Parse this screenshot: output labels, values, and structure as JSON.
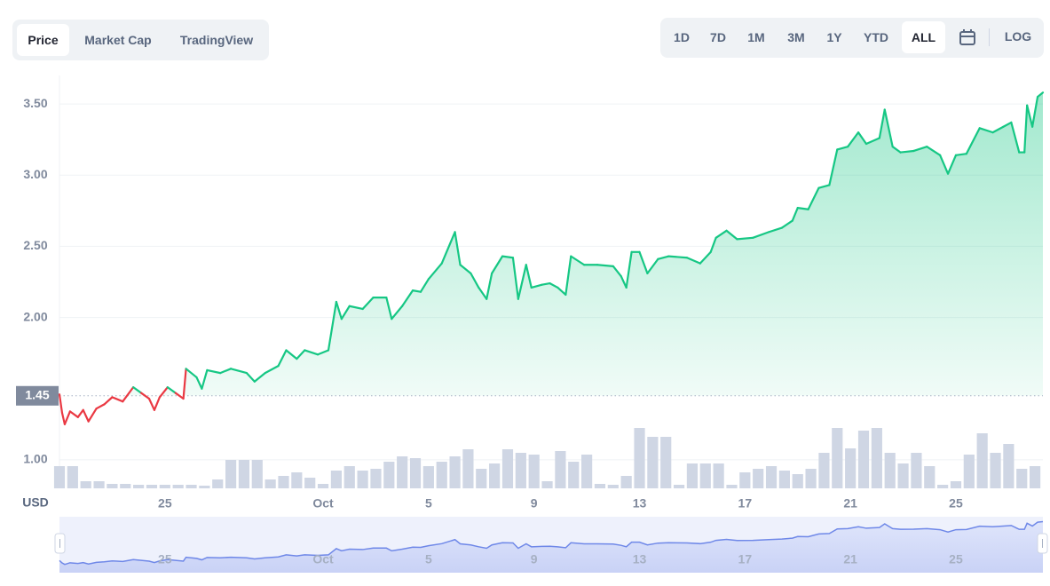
{
  "chart_data": {
    "type": "line",
    "tabs": [
      "Price",
      "Market Cap",
      "TradingView"
    ],
    "ranges": [
      "1D",
      "7D",
      "1M",
      "3M",
      "1Y",
      "YTD",
      "ALL"
    ],
    "scale_button": "LOG",
    "y_axis_label": "USD",
    "baseline": 1.45,
    "up_color": "#16c784",
    "down_color": "#ea3943",
    "volume_color": "#cfd6e4",
    "navigator_color": "#6f88e8",
    "grid": true,
    "xlim": [
      21,
      58.3
    ],
    "xticks": [
      {
        "value": 25,
        "label": "25"
      },
      {
        "value": 31,
        "label": "Oct"
      },
      {
        "value": 35,
        "label": "5"
      },
      {
        "value": 39,
        "label": "9"
      },
      {
        "value": 43,
        "label": "13"
      },
      {
        "value": 47,
        "label": "17"
      },
      {
        "value": 51,
        "label": "21"
      },
      {
        "value": 55,
        "label": "25"
      }
    ],
    "ylim": [
      0.8,
      3.7
    ],
    "yticks": [
      {
        "value": 1,
        "label": "1.00"
      },
      {
        "value": 2,
        "label": "2.00"
      },
      {
        "value": 2.5,
        "label": "2.50"
      },
      {
        "value": 3,
        "label": "3.00"
      },
      {
        "value": 3.5,
        "label": "3.50"
      }
    ],
    "y2lim": [
      0,
      100
    ],
    "series": [
      {
        "name": "Price",
        "x": [
          21.0,
          21.1,
          21.2,
          21.4,
          21.7,
          21.9,
          22.1,
          22.4,
          22.7,
          23.0,
          23.4,
          23.8,
          24.1,
          24.4,
          24.6,
          24.8,
          25.1,
          25.4,
          25.7,
          25.8,
          26.2,
          26.4,
          26.6,
          27.1,
          27.5,
          28.1,
          28.4,
          28.8,
          29.3,
          29.6,
          30.0,
          30.3,
          30.8,
          31.2,
          31.5,
          31.7,
          32.0,
          32.5,
          32.9,
          33.4,
          33.6,
          34.0,
          34.4,
          34.7,
          35.0,
          35.5,
          36.0,
          36.2,
          36.6,
          36.9,
          37.2,
          37.4,
          37.8,
          38.2,
          38.4,
          38.7,
          38.9,
          39.3,
          39.6,
          39.9,
          40.2,
          40.4,
          40.9,
          41.4,
          42.0,
          42.3,
          42.5,
          42.7,
          43.0,
          43.3,
          43.7,
          44.1,
          44.8,
          45.3,
          45.7,
          45.9,
          46.3,
          46.7,
          47.3,
          47.9,
          48.4,
          48.8,
          49.0,
          49.4,
          49.8,
          50.2,
          50.5,
          50.9,
          51.3,
          51.6,
          52.1,
          52.3,
          52.6,
          52.9,
          53.4,
          53.9,
          54.4,
          54.7,
          55.0,
          55.4,
          55.9,
          56.4,
          56.8,
          57.1,
          57.4,
          57.6,
          57.7,
          57.9,
          58.1,
          58.3
        ],
        "values": [
          1.46,
          1.33,
          1.25,
          1.34,
          1.3,
          1.35,
          1.27,
          1.36,
          1.39,
          1.44,
          1.41,
          1.51,
          1.47,
          1.43,
          1.35,
          1.44,
          1.51,
          1.47,
          1.43,
          1.64,
          1.58,
          1.5,
          1.63,
          1.61,
          1.64,
          1.61,
          1.55,
          1.61,
          1.66,
          1.77,
          1.71,
          1.77,
          1.74,
          1.77,
          2.11,
          1.99,
          2.08,
          2.06,
          2.14,
          2.14,
          1.99,
          2.08,
          2.19,
          2.18,
          2.27,
          2.38,
          2.6,
          2.37,
          2.31,
          2.21,
          2.13,
          2.31,
          2.43,
          2.42,
          2.13,
          2.37,
          2.21,
          2.23,
          2.24,
          2.21,
          2.16,
          2.43,
          2.37,
          2.37,
          2.36,
          2.29,
          2.21,
          2.46,
          2.46,
          2.31,
          2.41,
          2.43,
          2.42,
          2.38,
          2.46,
          2.56,
          2.61,
          2.55,
          2.56,
          2.6,
          2.63,
          2.68,
          2.77,
          2.76,
          2.91,
          2.93,
          3.18,
          3.2,
          3.3,
          3.22,
          3.26,
          3.46,
          3.2,
          3.16,
          3.17,
          3.2,
          3.14,
          3.01,
          3.14,
          3.15,
          3.33,
          3.3,
          3.34,
          3.37,
          3.16,
          3.16,
          3.49,
          3.34,
          3.55,
          3.58
        ]
      },
      {
        "name": "Volume",
        "axis": "y2",
        "x": [
          21,
          21.5,
          22,
          22.5,
          23,
          23.5,
          24,
          24.5,
          25,
          25.5,
          26,
          26.5,
          27,
          27.5,
          28,
          28.5,
          29,
          29.5,
          30,
          30.5,
          31,
          31.5,
          32,
          32.5,
          33,
          33.5,
          34,
          34.5,
          35,
          35.5,
          36,
          36.5,
          37,
          37.5,
          38,
          38.5,
          39,
          39.5,
          40,
          40.5,
          41,
          41.5,
          42,
          42.5,
          43,
          43.5,
          44,
          44.5,
          45,
          45.5,
          46,
          46.5,
          47,
          47.5,
          48,
          48.5,
          49,
          49.5,
          50,
          50.5,
          51,
          51.5,
          52,
          52.5,
          53,
          53.5,
          54,
          54.5,
          55,
          55.5,
          56,
          56.5,
          57,
          57.5,
          58
        ],
        "values": [
          25,
          25,
          8,
          8,
          5,
          5,
          4,
          4,
          4,
          4,
          4,
          3,
          10,
          32,
          32,
          32,
          10,
          14,
          18,
          12,
          5,
          20,
          25,
          20,
          22,
          30,
          36,
          34,
          25,
          30,
          36,
          44,
          22,
          28,
          44,
          40,
          38,
          8,
          42,
          30,
          38,
          5,
          4,
          14,
          68,
          58,
          58,
          4,
          28,
          28,
          28,
          4,
          18,
          22,
          25,
          20,
          16,
          22,
          40,
          68,
          45,
          65,
          68,
          40,
          28,
          40,
          25,
          4,
          8,
          38,
          62,
          40,
          50,
          22,
          25
        ]
      }
    ]
  }
}
